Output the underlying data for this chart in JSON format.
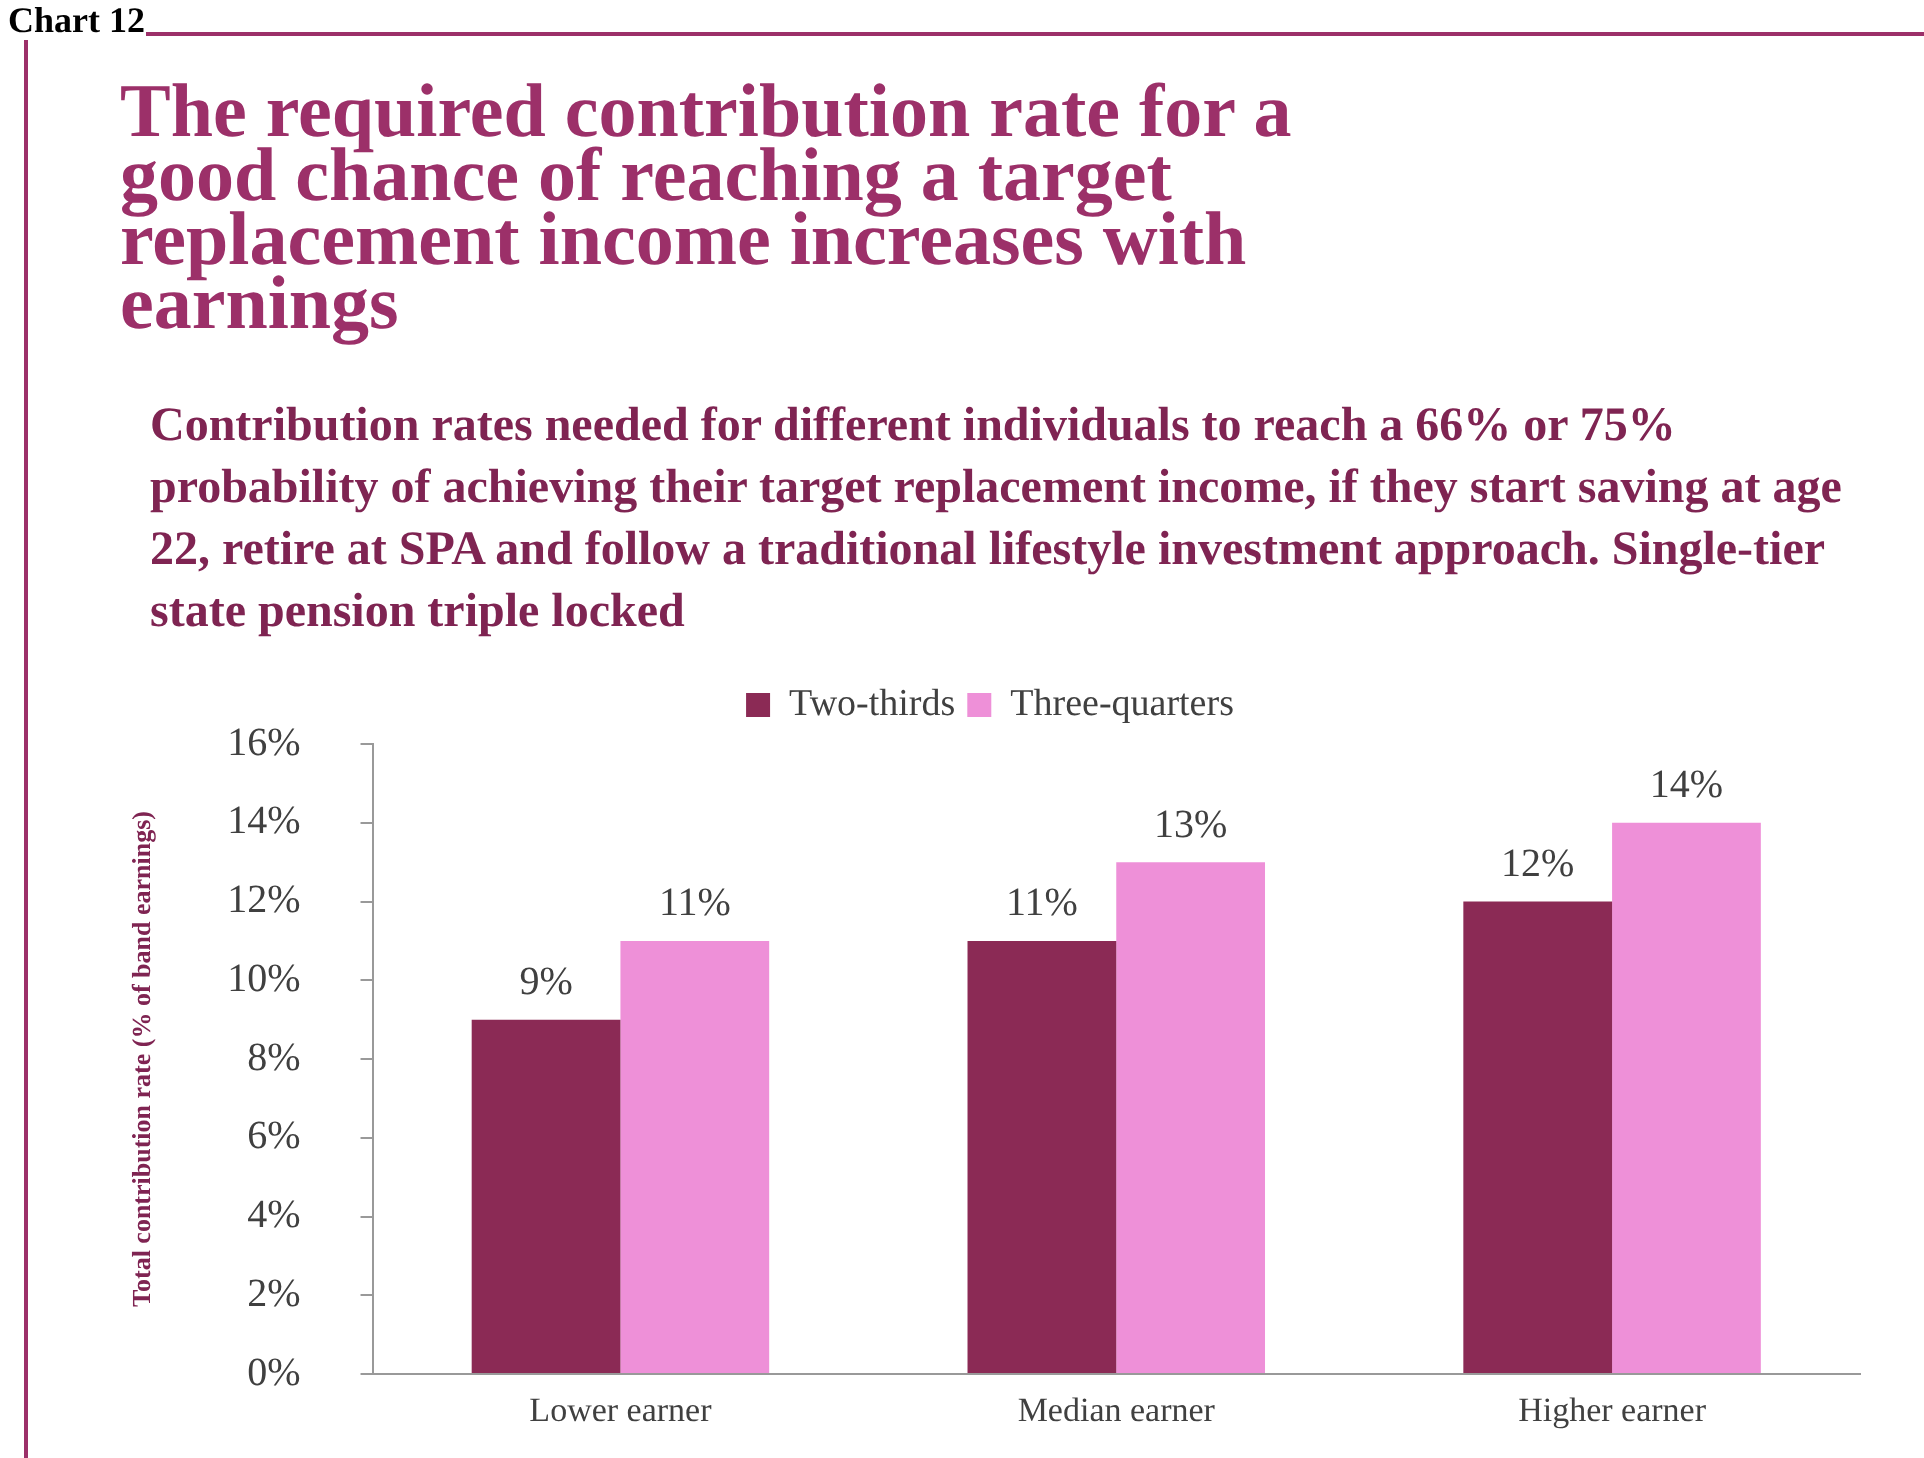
{
  "chart_data": {
    "type": "bar",
    "title": "The required contribution rate for a good chance of reaching a target replacement income increases with earnings",
    "subtitle": "Contribution rates needed for different individuals to reach a 66% or 75% probability of achieving their target replacement income, if they start saving at age 22, retire at SPA and follow a traditional lifestyle investment approach. Single-tier state pension triple locked",
    "ylabel": "Total contribution rate (% of band earnings)",
    "annotations": [
      "Chart 12"
    ],
    "categories": [
      "Lower earner",
      "Median earner",
      "Higher earner"
    ],
    "series": [
      {
        "name": "Two-thirds",
        "color": "#8b2a55",
        "values": [
          9,
          11,
          12
        ],
        "value_labels": [
          "9%",
          "11%",
          "12%"
        ]
      },
      {
        "name": "Three-quarters",
        "color": "#ee90d8",
        "values": [
          11,
          13,
          14
        ],
        "value_labels": [
          "11%",
          "13%",
          "14%"
        ]
      }
    ],
    "ylim": [
      0,
      16
    ],
    "yticks": [
      {
        "value": 0,
        "label": "0%"
      },
      {
        "value": 2,
        "label": "2%"
      },
      {
        "value": 4,
        "label": "4%"
      },
      {
        "value": 6,
        "label": "6%"
      },
      {
        "value": 8,
        "label": "8%"
      },
      {
        "value": 10,
        "label": "10%"
      },
      {
        "value": 12,
        "label": "12%"
      },
      {
        "value": 14,
        "label": "14%"
      },
      {
        "value": 16,
        "label": "16%"
      }
    ],
    "grid": false,
    "legend": "top"
  }
}
